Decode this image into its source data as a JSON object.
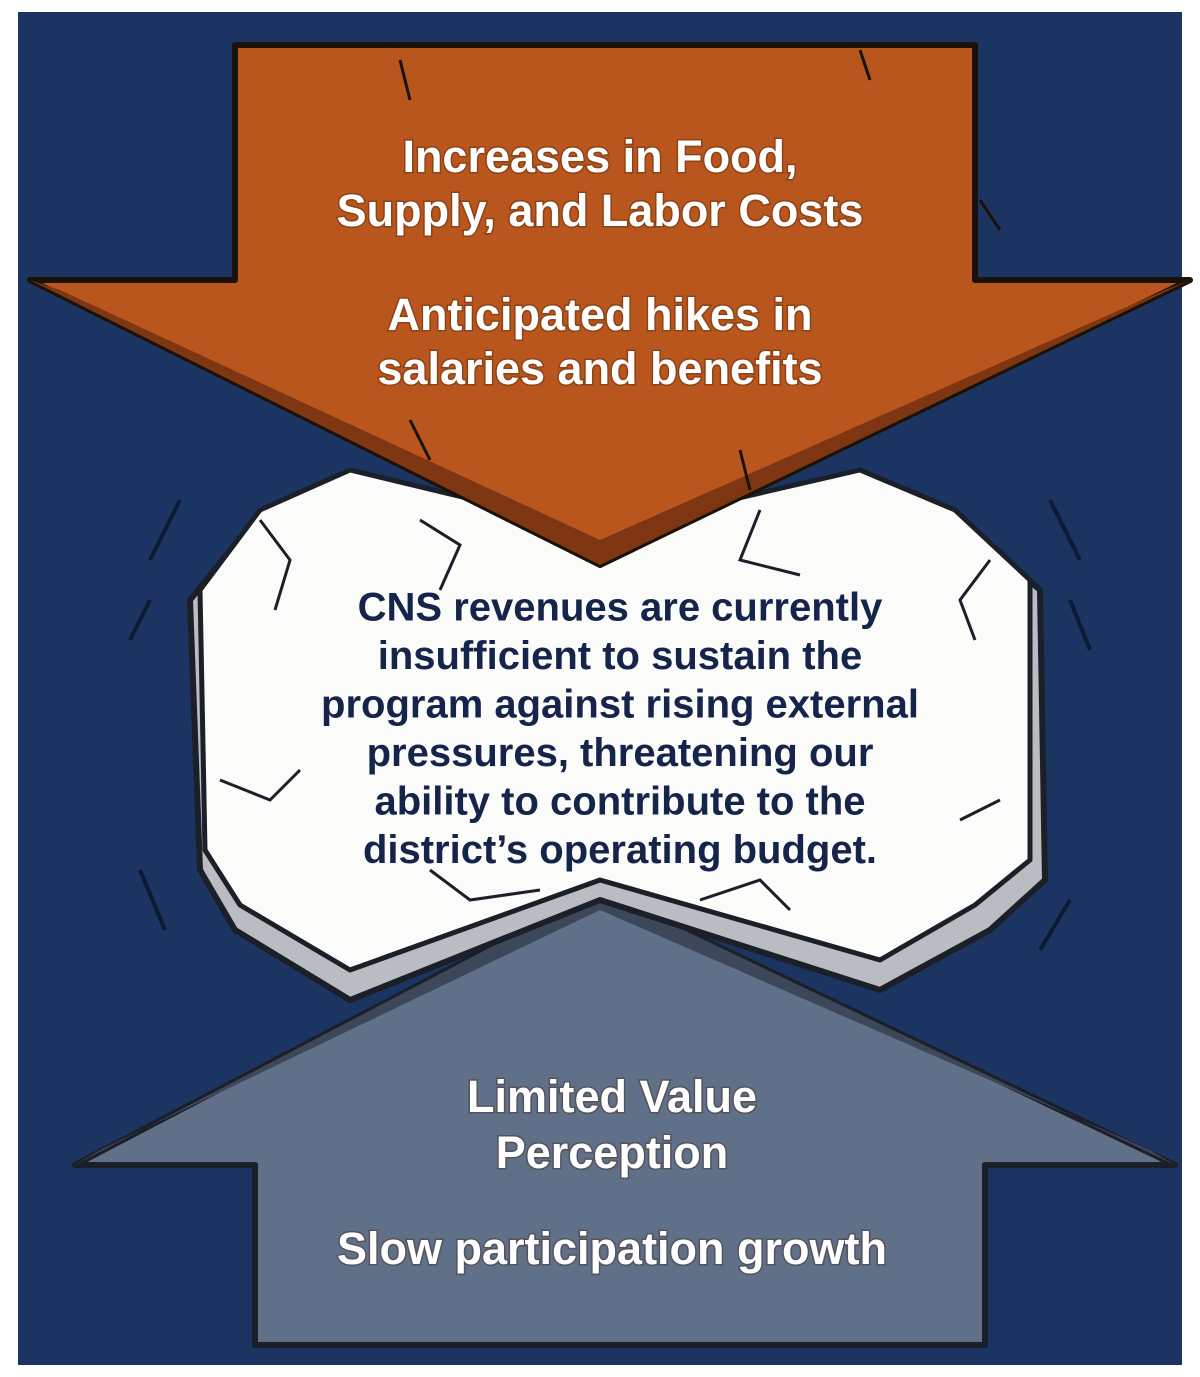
{
  "top_arrow": {
    "heading": [
      "Increases in Food,",
      "Supply, and Labor Costs"
    ],
    "subheading": [
      "Anticipated hikes in",
      "salaries and benefits"
    ]
  },
  "center_block": {
    "text": [
      "CNS revenues are currently",
      "insufficient to sustain the",
      "program against rising external",
      "pressures, threatening our",
      "ability to contribute to the",
      "district’s operating budget."
    ]
  },
  "bottom_arrow": {
    "heading": [
      "Limited Value",
      "Perception"
    ],
    "subheading": [
      "Slow participation growth"
    ]
  }
}
